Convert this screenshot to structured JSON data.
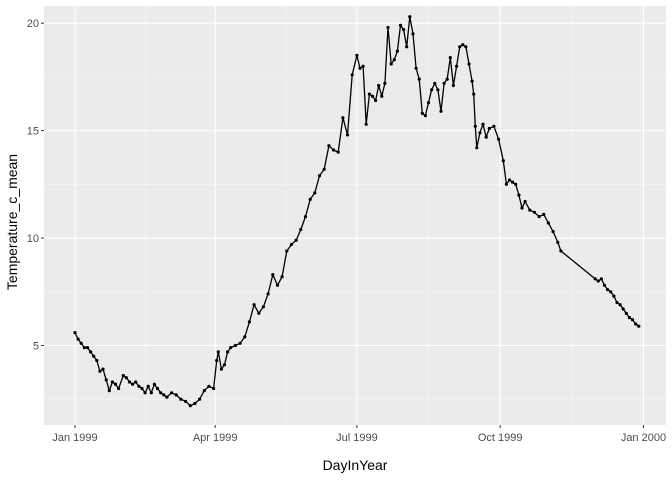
{
  "chart_data": {
    "type": "line",
    "xlabel": "DayInYear",
    "ylabel": "Temperature_c_mean",
    "x_type": "date",
    "xlim": [
      "1999-01-01",
      "2000-01-01"
    ],
    "ylim": [
      1.3,
      20.8
    ],
    "x_ticks": [
      {
        "date": "1999-01-01",
        "label": "Jan 1999"
      },
      {
        "date": "1999-04-01",
        "label": "Apr 1999"
      },
      {
        "date": "1999-07-01",
        "label": "Jul 1999"
      },
      {
        "date": "1999-10-01",
        "label": "Oct 1999"
      },
      {
        "date": "2000-01-01",
        "label": "Jan 2000"
      }
    ],
    "y_ticks": [
      5,
      10,
      15,
      20
    ],
    "grid": true,
    "legend": "none",
    "series": [
      {
        "color": "#000000",
        "marker": "point",
        "points": [
          [
            "1999-01-01",
            5.6
          ],
          [
            "1999-01-03",
            5.3
          ],
          [
            "1999-01-05",
            5.1
          ],
          [
            "1999-01-07",
            4.9
          ],
          [
            "1999-01-09",
            4.9
          ],
          [
            "1999-01-11",
            4.7
          ],
          [
            "1999-01-13",
            4.5
          ],
          [
            "1999-01-15",
            4.3
          ],
          [
            "1999-01-17",
            3.8
          ],
          [
            "1999-01-19",
            3.9
          ],
          [
            "1999-01-21",
            3.4
          ],
          [
            "1999-01-23",
            2.9
          ],
          [
            "1999-01-25",
            3.3
          ],
          [
            "1999-01-27",
            3.2
          ],
          [
            "1999-01-29",
            3.0
          ],
          [
            "1999-02-01",
            3.6
          ],
          [
            "1999-02-03",
            3.5
          ],
          [
            "1999-02-05",
            3.3
          ],
          [
            "1999-02-07",
            3.2
          ],
          [
            "1999-02-09",
            3.3
          ],
          [
            "1999-02-11",
            3.1
          ],
          [
            "1999-02-13",
            3.0
          ],
          [
            "1999-02-15",
            2.8
          ],
          [
            "1999-02-17",
            3.1
          ],
          [
            "1999-02-19",
            2.8
          ],
          [
            "1999-02-21",
            3.2
          ],
          [
            "1999-02-23",
            3.0
          ],
          [
            "1999-02-25",
            2.8
          ],
          [
            "1999-02-27",
            2.7
          ],
          [
            "1999-03-01",
            2.6
          ],
          [
            "1999-03-04",
            2.8
          ],
          [
            "1999-03-07",
            2.7
          ],
          [
            "1999-03-10",
            2.5
          ],
          [
            "1999-03-13",
            2.4
          ],
          [
            "1999-03-16",
            2.2
          ],
          [
            "1999-03-19",
            2.3
          ],
          [
            "1999-03-22",
            2.5
          ],
          [
            "1999-03-25",
            2.9
          ],
          [
            "1999-03-28",
            3.1
          ],
          [
            "1999-03-31",
            3.0
          ],
          [
            "1999-04-02",
            4.3
          ],
          [
            "1999-04-03",
            4.7
          ],
          [
            "1999-04-05",
            3.9
          ],
          [
            "1999-04-07",
            4.1
          ],
          [
            "1999-04-09",
            4.7
          ],
          [
            "1999-04-11",
            4.9
          ],
          [
            "1999-04-14",
            5.0
          ],
          [
            "1999-04-17",
            5.1
          ],
          [
            "1999-04-20",
            5.4
          ],
          [
            "1999-04-23",
            6.1
          ],
          [
            "1999-04-26",
            6.9
          ],
          [
            "1999-04-29",
            6.5
          ],
          [
            "1999-05-02",
            6.8
          ],
          [
            "1999-05-05",
            7.4
          ],
          [
            "1999-05-08",
            8.3
          ],
          [
            "1999-05-11",
            7.8
          ],
          [
            "1999-05-14",
            8.2
          ],
          [
            "1999-05-17",
            9.4
          ],
          [
            "1999-05-20",
            9.7
          ],
          [
            "1999-05-23",
            9.9
          ],
          [
            "1999-05-26",
            10.4
          ],
          [
            "1999-05-29",
            11.0
          ],
          [
            "1999-06-01",
            11.8
          ],
          [
            "1999-06-04",
            12.1
          ],
          [
            "1999-06-07",
            12.9
          ],
          [
            "1999-06-10",
            13.2
          ],
          [
            "1999-06-13",
            14.3
          ],
          [
            "1999-06-16",
            14.1
          ],
          [
            "1999-06-19",
            14.0
          ],
          [
            "1999-06-22",
            15.6
          ],
          [
            "1999-06-25",
            14.8
          ],
          [
            "1999-06-28",
            17.6
          ],
          [
            "1999-07-01",
            18.5
          ],
          [
            "1999-07-03",
            17.9
          ],
          [
            "1999-07-05",
            18.0
          ],
          [
            "1999-07-07",
            15.3
          ],
          [
            "1999-07-09",
            16.7
          ],
          [
            "1999-07-11",
            16.6
          ],
          [
            "1999-07-13",
            16.4
          ],
          [
            "1999-07-15",
            17.1
          ],
          [
            "1999-07-17",
            16.6
          ],
          [
            "1999-07-19",
            17.2
          ],
          [
            "1999-07-21",
            19.8
          ],
          [
            "1999-07-23",
            18.1
          ],
          [
            "1999-07-25",
            18.3
          ],
          [
            "1999-07-27",
            18.7
          ],
          [
            "1999-07-29",
            19.9
          ],
          [
            "1999-07-31",
            19.7
          ],
          [
            "1999-08-02",
            18.9
          ],
          [
            "1999-08-04",
            20.3
          ],
          [
            "1999-08-06",
            19.5
          ],
          [
            "1999-08-08",
            17.9
          ],
          [
            "1999-08-10",
            17.4
          ],
          [
            "1999-08-12",
            15.8
          ],
          [
            "1999-08-14",
            15.7
          ],
          [
            "1999-08-16",
            16.3
          ],
          [
            "1999-08-18",
            16.9
          ],
          [
            "1999-08-20",
            17.2
          ],
          [
            "1999-08-22",
            16.9
          ],
          [
            "1999-08-24",
            15.9
          ],
          [
            "1999-08-26",
            17.2
          ],
          [
            "1999-08-28",
            17.4
          ],
          [
            "1999-08-30",
            18.4
          ],
          [
            "1999-09-01",
            17.1
          ],
          [
            "1999-09-03",
            18.0
          ],
          [
            "1999-09-05",
            18.9
          ],
          [
            "1999-09-07",
            19.0
          ],
          [
            "1999-09-09",
            18.9
          ],
          [
            "1999-09-11",
            18.1
          ],
          [
            "1999-09-13",
            17.3
          ],
          [
            "1999-09-14",
            16.7
          ],
          [
            "1999-09-15",
            15.2
          ],
          [
            "1999-09-16",
            14.2
          ],
          [
            "1999-09-18",
            14.9
          ],
          [
            "1999-09-20",
            15.3
          ],
          [
            "1999-09-22",
            14.7
          ],
          [
            "1999-09-24",
            15.1
          ],
          [
            "1999-09-27",
            15.2
          ],
          [
            "1999-09-30",
            14.6
          ],
          [
            "1999-10-03",
            13.6
          ],
          [
            "1999-10-05",
            12.5
          ],
          [
            "1999-10-07",
            12.7
          ],
          [
            "1999-10-09",
            12.6
          ],
          [
            "1999-10-11",
            12.5
          ],
          [
            "1999-10-13",
            12.0
          ],
          [
            "1999-10-15",
            11.4
          ],
          [
            "1999-10-17",
            11.7
          ],
          [
            "1999-10-20",
            11.3
          ],
          [
            "1999-10-23",
            11.2
          ],
          [
            "1999-10-26",
            11.0
          ],
          [
            "1999-10-29",
            11.1
          ],
          [
            "1999-11-01",
            10.7
          ],
          [
            "1999-11-04",
            10.3
          ],
          [
            "1999-11-07",
            9.8
          ],
          [
            "1999-11-09",
            9.4
          ],
          [
            "1999-12-01",
            8.1
          ],
          [
            "1999-12-03",
            8.0
          ],
          [
            "1999-12-05",
            8.1
          ],
          [
            "1999-12-07",
            7.8
          ],
          [
            "1999-12-09",
            7.6
          ],
          [
            "1999-12-11",
            7.5
          ],
          [
            "1999-12-13",
            7.3
          ],
          [
            "1999-12-15",
            7.0
          ],
          [
            "1999-12-17",
            6.9
          ],
          [
            "1999-12-19",
            6.7
          ],
          [
            "1999-12-21",
            6.5
          ],
          [
            "1999-12-23",
            6.3
          ],
          [
            "1999-12-25",
            6.2
          ],
          [
            "1999-12-27",
            6.0
          ],
          [
            "1999-12-29",
            5.9
          ]
        ]
      }
    ]
  }
}
